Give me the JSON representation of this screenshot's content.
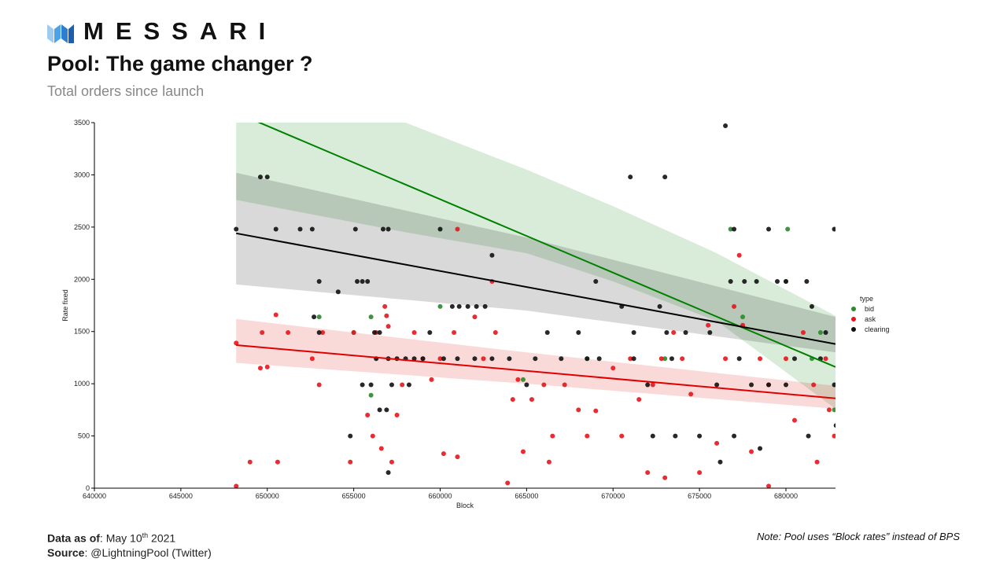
{
  "header": {
    "logo": "MESSARI",
    "title": "Pool: The game changer ?",
    "subtitle": "Total orders since launch"
  },
  "footer": {
    "date_label": "Data as of",
    "date": "May 10",
    "date_sup": "th",
    "date_year": "2021",
    "source_label": "Source",
    "source": "@LightningPool (Twitter)",
    "note": "Note: Pool uses “Block rates” instead of BPS"
  },
  "chart_data": {
    "type": "scatter",
    "x_label": "Block",
    "y_label": "Rate fixed",
    "legend_title": "type",
    "legend_position": "right",
    "xlim": [
      640000,
      682867
    ],
    "ylim": [
      0,
      3500
    ],
    "xticks": [
      640000,
      645000,
      650000,
      655000,
      660000,
      665000,
      670000,
      675000,
      680000
    ],
    "yticks": [
      0,
      500,
      1000,
      1500,
      2000,
      2500,
      3000,
      3500
    ],
    "series": [
      {
        "name": "bid",
        "color": "#2a8a2a",
        "line_color": "#008000",
        "x": [
          653000,
          655000,
          656000,
          656000,
          660000,
          664800,
          668500,
          673000,
          676800,
          680100,
          680000,
          681500,
          682000,
          682800,
          677500
        ],
        "values": [
          1640,
          1490,
          1640,
          890,
          1740,
          1040,
          1240,
          1240,
          2480,
          2480,
          1980,
          1240,
          1490,
          750,
          1640
        ],
        "fit": {
          "x": [
            648200,
            682867
          ],
          "y": [
            3595,
            1160
          ]
        },
        "band": {
          "x": [
            648200,
            658000,
            665000,
            670000,
            676000,
            682867
          ],
          "lower": [
            2760,
            2450,
            2250,
            1980,
            1600,
            760
          ],
          "upper": [
            4800,
            3500,
            3050,
            2700,
            2250,
            1650
          ]
        }
      },
      {
        "name": "ask",
        "color": "#e8141b",
        "line_color": "#e00000",
        "x": [
          648200,
          648200,
          649000,
          649600,
          649700,
          650000,
          650500,
          650600,
          651200,
          652600,
          653000,
          653200,
          654800,
          655000,
          655800,
          656100,
          656300,
          656600,
          656800,
          656900,
          657000,
          657200,
          657500,
          657800,
          658500,
          659000,
          659500,
          660000,
          660200,
          660800,
          661000,
          661000,
          662000,
          662500,
          663000,
          663200,
          663900,
          664200,
          664500,
          664800,
          665300,
          666000,
          666300,
          666500,
          667200,
          668000,
          668500,
          669000,
          670000,
          670500,
          671000,
          671500,
          672000,
          672300,
          672800,
          673000,
          673500,
          674000,
          674500,
          675000,
          675500,
          676000,
          676500,
          677000,
          677300,
          677500,
          678000,
          678500,
          679000,
          679000,
          680000,
          680500,
          681000,
          681600,
          681800,
          682300,
          682500,
          682800
        ],
        "values": [
          20,
          1390,
          250,
          1150,
          1490,
          1160,
          1660,
          250,
          1490,
          1240,
          990,
          1490,
          250,
          1490,
          700,
          500,
          1490,
          380,
          1740,
          1650,
          1550,
          250,
          700,
          990,
          1490,
          1240,
          1040,
          1240,
          330,
          1490,
          300,
          2480,
          1640,
          1240,
          1980,
          1490,
          50,
          850,
          1040,
          350,
          850,
          990,
          250,
          500,
          990,
          750,
          500,
          740,
          1150,
          500,
          1240,
          850,
          150,
          990,
          1240,
          100,
          1490,
          1240,
          900,
          150,
          1560,
          430,
          1240,
          1740,
          2230,
          1560,
          350,
          1240,
          990,
          20,
          1240,
          650,
          1490,
          990,
          250,
          1240,
          750,
          500
        ],
        "fit": {
          "x": [
            648200,
            682867
          ],
          "y": [
            1370,
            860
          ]
        },
        "band": {
          "x": [
            648200,
            665000,
            682867
          ],
          "lower": [
            1200,
            1000,
            760
          ],
          "upper": [
            1620,
            1300,
            980
          ]
        }
      },
      {
        "name": "clearing",
        "color": "#111111",
        "line_color": "#000000",
        "x": [
          648200,
          649600,
          650000,
          650500,
          651900,
          652600,
          653000,
          652700,
          653000,
          654100,
          654800,
          655100,
          655200,
          655500,
          655800,
          656200,
          656500,
          656700,
          657000,
          656300,
          657000,
          657500,
          658000,
          658500,
          655500,
          656000,
          656500,
          656900,
          657000,
          657200,
          658200,
          659000,
          659400,
          660000,
          660700,
          661100,
          661600,
          662100,
          662600,
          663000,
          660200,
          661000,
          662000,
          663000,
          664000,
          665000,
          665500,
          666200,
          667000,
          668000,
          668500,
          669000,
          669200,
          670500,
          671000,
          671200,
          671200,
          672000,
          672300,
          672700,
          673000,
          673100,
          673400,
          673600,
          674200,
          675000,
          675600,
          676000,
          676200,
          676500,
          676800,
          677000,
          677300,
          677600,
          678300,
          679000,
          679500,
          680000,
          680500,
          681200,
          681500,
          682000,
          682300,
          682800,
          682800,
          681300,
          680000,
          679000,
          678000,
          677000,
          678500,
          682900
        ],
        "values": [
          2480,
          2980,
          2980,
          2480,
          2480,
          2480,
          1980,
          1640,
          1490,
          1880,
          500,
          2480,
          1980,
          1980,
          1980,
          1490,
          1490,
          2480,
          2480,
          1240,
          1240,
          1240,
          1240,
          1240,
          990,
          990,
          750,
          750,
          150,
          990,
          990,
          1240,
          1490,
          2480,
          1740,
          1740,
          1740,
          1740,
          1740,
          2230,
          1240,
          1240,
          1240,
          1240,
          1240,
          990,
          1240,
          1490,
          1240,
          1490,
          1240,
          1980,
          1240,
          1740,
          2980,
          1490,
          1240,
          990,
          500,
          1740,
          2980,
          1490,
          1240,
          500,
          1490,
          500,
          1490,
          990,
          250,
          3470,
          1980,
          2480,
          1240,
          1980,
          1980,
          2480,
          1980,
          1980,
          1240,
          1980,
          1740,
          1240,
          1490,
          2480,
          990,
          500,
          990,
          990,
          990,
          500,
          380,
          600
        ],
        "fit": {
          "x": [
            648200,
            682867
          ],
          "y": [
            2440,
            1380
          ]
        },
        "band": {
          "x": [
            648200,
            665000,
            682867
          ],
          "lower": [
            1950,
            1700,
            1300
          ],
          "upper": [
            3020,
            2400,
            1640
          ]
        }
      }
    ]
  }
}
